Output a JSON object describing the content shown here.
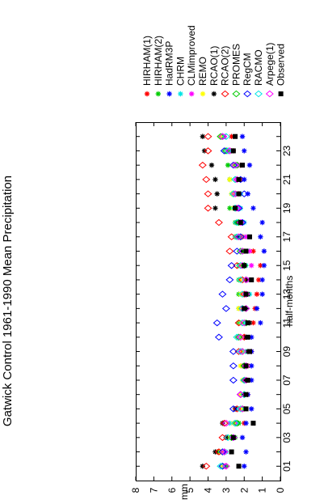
{
  "chart_data": {
    "type": "scatter",
    "title": "Gatwick Control 1961-1990 Mean Precipitation",
    "xlabel": "half-months",
    "ylabel": "mm",
    "x": [
      1,
      2,
      3,
      4,
      5,
      6,
      7,
      8,
      9,
      10,
      11,
      12,
      13,
      14,
      15,
      16,
      17,
      18,
      19,
      20,
      21,
      22,
      23,
      24
    ],
    "xticks": [
      "01",
      "03",
      "05",
      "07",
      "09",
      "11",
      "13",
      "15",
      "17",
      "19",
      "21",
      "23"
    ],
    "xlim": [
      0,
      25
    ],
    "ylim": [
      0,
      8
    ],
    "yticks": [
      0,
      1,
      2,
      3,
      4,
      5,
      6,
      7,
      8
    ],
    "grid": false,
    "orientation": "rotated-90",
    "legend_position": "top",
    "series": [
      {
        "name": "HIRHAM(1)",
        "color": "#ff0000",
        "marker": "star",
        "values": [
          3.1,
          3.5,
          3.0,
          2.0,
          2.0,
          1.8,
          1.8,
          1.8,
          1.6,
          2.0,
          1.5,
          1.4,
          1.3,
          1.2,
          1.1,
          1.5,
          2.1,
          2.1,
          2.5,
          2.3,
          2.2,
          2.2,
          2.6,
          2.7
        ]
      },
      {
        "name": "HIRHAM(2)",
        "color": "#00cc00",
        "marker": "star",
        "values": [
          3.0,
          3.4,
          2.5,
          2.3,
          2.1,
          2.0,
          2.0,
          2.1,
          2.1,
          2.3,
          2.3,
          2.3,
          2.3,
          2.3,
          2.3,
          2.1,
          2.5,
          2.5,
          2.8,
          2.6,
          2.8,
          2.9,
          2.7,
          3.1
        ]
      },
      {
        "name": "HadRM3P",
        "color": "#0000ff",
        "marker": "star",
        "values": [
          2.0,
          1.9,
          2.1,
          1.9,
          1.6,
          1.8,
          1.6,
          1.6,
          1.6,
          1.6,
          1.1,
          1.3,
          1.0,
          1.0,
          0.9,
          0.9,
          1.1,
          1.0,
          1.5,
          1.8,
          2.0,
          1.7,
          2.0,
          2.1
        ]
      },
      {
        "name": "CHRM",
        "color": "#00e5e5",
        "marker": "star",
        "values": [
          3.2,
          3.0,
          2.6,
          2.8,
          2.3,
          2.0,
          2.0,
          1.9,
          1.9,
          2.3,
          1.9,
          1.9,
          1.7,
          1.8,
          1.9,
          1.8,
          1.9,
          2.0,
          2.2,
          2.2,
          2.4,
          2.4,
          2.9,
          3.2
        ]
      },
      {
        "name": "CLMimproved",
        "color": "#ff00ff",
        "marker": "star",
        "values": [
          3.1,
          3.1,
          3.0,
          2.5,
          2.2,
          2.2,
          2.0,
          2.1,
          2.2,
          2.3,
          2.2,
          2.2,
          1.9,
          1.8,
          1.6,
          1.7,
          1.9,
          2.2,
          2.3,
          2.5,
          2.4,
          2.3,
          2.8,
          3.1
        ]
      },
      {
        "name": "REMO",
        "color": "#ffff00",
        "marker": "star",
        "values": [
          3.2,
          3.3,
          2.8,
          2.6,
          2.2,
          2.2,
          2.1,
          2.2,
          2.1,
          2.2,
          2.2,
          2.3,
          2.2,
          2.2,
          2.2,
          2.0,
          2.2,
          2.3,
          2.6,
          2.7,
          2.8,
          2.6,
          3.0,
          3.3
        ]
      },
      {
        "name": "RCAO(1)",
        "color": "#000000",
        "marker": "star",
        "values": [
          4.3,
          3.6,
          3.0,
          3.2,
          2.5,
          2.0,
          2.0,
          2.0,
          1.8,
          1.9,
          1.7,
          1.9,
          1.8,
          1.9,
          2.0,
          2.1,
          2.3,
          2.4,
          3.6,
          3.5,
          3.6,
          3.8,
          4.2,
          4.3
        ]
      },
      {
        "name": "RCAO(2)",
        "color": "#ff0000",
        "marker": "diamond",
        "values": [
          4.1,
          3.4,
          3.2,
          3.1,
          2.4,
          2.0,
          2.0,
          1.9,
          2.3,
          2.0,
          2.3,
          2.1,
          2.0,
          2.1,
          2.4,
          2.8,
          2.7,
          3.4,
          4.0,
          4.0,
          4.1,
          4.3,
          4.0,
          4.0
        ]
      },
      {
        "name": "PROMES",
        "color": "#00cc00",
        "marker": "diamond",
        "values": [
          3.2,
          3.1,
          2.7,
          2.4,
          2.1,
          2.0,
          2.0,
          2.0,
          2.1,
          2.3,
          1.9,
          1.9,
          1.9,
          1.9,
          2.0,
          2.2,
          2.2,
          2.3,
          2.5,
          2.6,
          2.5,
          2.4,
          3.0,
          3.3
        ]
      },
      {
        "name": "RegCM",
        "color": "#0000ff",
        "marker": "diamond",
        "values": [
          3.2,
          3.2,
          2.6,
          2.5,
          2.6,
          2.2,
          2.6,
          2.6,
          2.6,
          3.4,
          3.5,
          3.0,
          3.2,
          2.8,
          2.7,
          2.4,
          2.2,
          2.1,
          2.3,
          2.0,
          2.2,
          2.6,
          3.1,
          3.2
        ]
      },
      {
        "name": "RACMO",
        "color": "#00e5e5",
        "marker": "diamond",
        "values": [
          3.3,
          3.1,
          2.9,
          2.5,
          2.2,
          2.0,
          2.0,
          1.9,
          2.2,
          2.4,
          2.1,
          2.1,
          2.1,
          2.2,
          2.2,
          2.1,
          2.4,
          2.4,
          2.5,
          2.6,
          2.5,
          2.5,
          2.9,
          3.0
        ]
      },
      {
        "name": "Arpege(1)",
        "color": "#ff00ff",
        "marker": "diamond",
        "values": [
          3.0,
          3.1,
          2.6,
          3.0,
          2.1,
          2.2,
          1.9,
          1.9,
          2.1,
          2.2,
          2.0,
          1.9,
          1.9,
          1.9,
          2.1,
          2.1,
          2.3,
          2.2,
          2.4,
          2.5,
          2.4,
          2.5,
          2.8,
          3.2
        ]
      },
      {
        "name": "Observed",
        "color": "#000000",
        "marker": "square",
        "values": [
          2.3,
          2.7,
          2.6,
          1.5,
          1.9,
          1.9,
          1.8,
          1.9,
          1.7,
          1.8,
          1.8,
          2.0,
          1.9,
          1.6,
          2.0,
          1.9,
          1.7,
          2.2,
          2.5,
          2.3,
          2.3,
          2.1,
          2.6,
          2.5
        ]
      }
    ]
  }
}
